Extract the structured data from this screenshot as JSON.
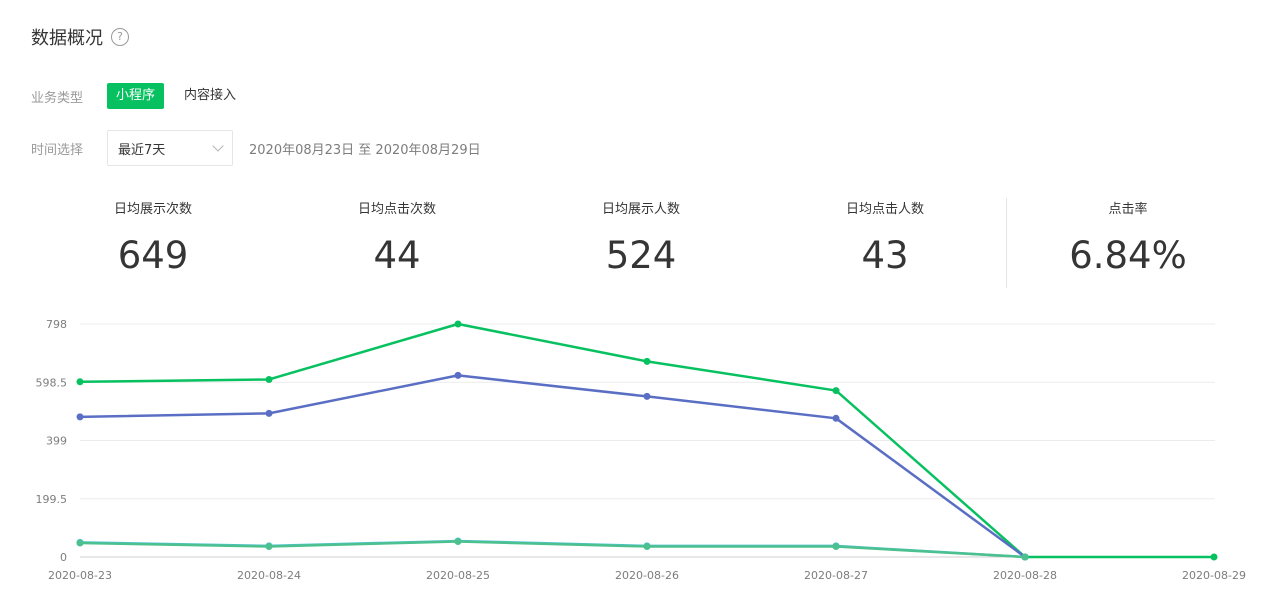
{
  "page": {
    "title": "数据概况",
    "help_icon": "?"
  },
  "filters": {
    "business_type": {
      "label": "业务类型",
      "options": [
        "小程序",
        "内容接入"
      ],
      "active": "小程序"
    },
    "time": {
      "label": "时间选择",
      "selected": "最近7天",
      "range": "2020年08月23日 至 2020年08月29日"
    }
  },
  "stats": [
    {
      "label": "日均展示次数",
      "value": "649"
    },
    {
      "label": "日均点击次数",
      "value": "44"
    },
    {
      "label": "日均展示人数",
      "value": "524"
    },
    {
      "label": "日均点击人数",
      "value": "43"
    },
    {
      "label": "点击率",
      "value": "6.84%"
    }
  ],
  "chart_data": {
    "type": "line",
    "x": [
      "2020-08-23",
      "2020-08-24",
      "2020-08-25",
      "2020-08-26",
      "2020-08-27",
      "2020-08-28",
      "2020-08-29"
    ],
    "ylim": [
      0,
      798
    ],
    "yticks": [
      0,
      199.5,
      399,
      598.5,
      798
    ],
    "ytick_labels": [
      "0",
      "199.5",
      "399",
      "598.5",
      "798"
    ],
    "grid": true,
    "series": [
      {
        "color": "#07c160",
        "values": [
          600,
          608,
          798,
          670,
          570,
          0,
          0
        ]
      },
      {
        "color": "#5a6fc4",
        "values": [
          480,
          492,
          622,
          550,
          475,
          0,
          null
        ]
      },
      {
        "color": "#51c4d3",
        "values": [
          50,
          38,
          55,
          38,
          38,
          0,
          null
        ]
      },
      {
        "color": "#4cc08e",
        "values": [
          48,
          36,
          53,
          36,
          36,
          0,
          null
        ]
      }
    ]
  }
}
